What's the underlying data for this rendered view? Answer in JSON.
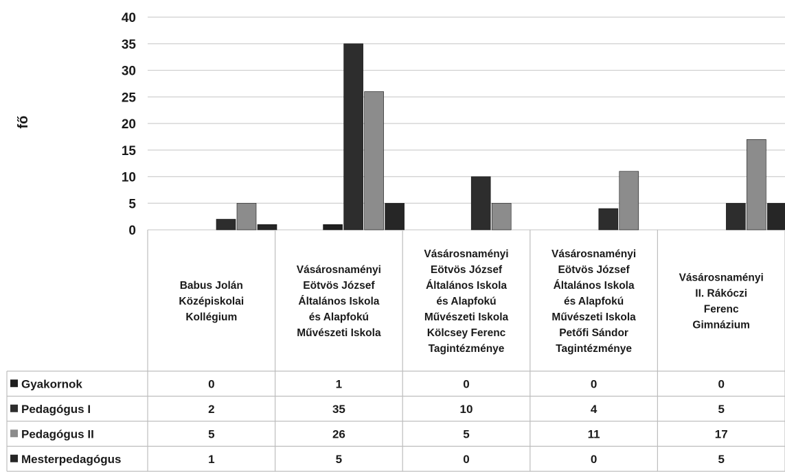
{
  "chart_data": {
    "type": "bar",
    "ylabel": "fő",
    "xlabel": "",
    "ylim": [
      0,
      40
    ],
    "yticks": [
      "0",
      "5",
      "10",
      "15",
      "20",
      "25",
      "30",
      "35",
      "40"
    ],
    "grid": true,
    "legend": "data-table-left",
    "categories": [
      [
        "Babus Jolán",
        "Középiskolai",
        "Kollégium"
      ],
      [
        "Vásárosnaményi",
        "Eötvös József",
        "Általános Iskola",
        "és Alapfokú",
        "Művészeti Iskola"
      ],
      [
        "Vásárosnaményi",
        "Eötvös József",
        "Általános Iskola",
        "és Alapfokú",
        "Művészeti Iskola",
        "Kölcsey Ferenc",
        "Tagintézménye"
      ],
      [
        "Vásárosnaményi",
        "Eötvös József",
        "Általános Iskola",
        "és Alapfokú",
        "Művészeti Iskola",
        "Petőfi Sándor",
        "Tagintézménye"
      ],
      [
        "Vásárosnaményi",
        "II. Rákóczi",
        "Ferenc",
        "Gimnázium"
      ]
    ],
    "series": [
      {
        "name": "Gyakornok",
        "color": "#1f1f1f",
        "values": [
          0,
          1,
          0,
          0,
          0
        ]
      },
      {
        "name": "Pedagógus I",
        "color": "#2d2d2d",
        "values": [
          2,
          35,
          10,
          4,
          5
        ]
      },
      {
        "name": "Pedagógus II",
        "color": "#8c8c8c",
        "values": [
          5,
          26,
          5,
          11,
          17
        ]
      },
      {
        "name": "Mesterpedagógus",
        "color": "#262626",
        "values": [
          1,
          5,
          0,
          0,
          5
        ]
      }
    ]
  }
}
